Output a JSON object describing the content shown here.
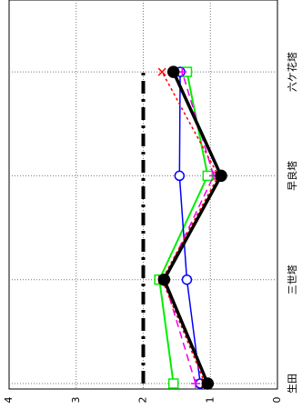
{
  "chart_data": {
    "type": "line",
    "categories": [
      "生田",
      "三世塔",
      "早良塔",
      "六ケ花塔"
    ],
    "ylim": [
      0,
      4
    ],
    "yticks": [
      0,
      1,
      2,
      3,
      4
    ],
    "grid": true,
    "series": [
      {
        "color": "#000000",
        "dash": "14,6,3,6",
        "width": 4,
        "marker": "none",
        "values": [
          2,
          2,
          2,
          2
        ]
      },
      {
        "color": "#00ee00",
        "dash": "",
        "width": 2,
        "marker": "square",
        "values": [
          1.55,
          1.76,
          1.04,
          1.35
        ]
      },
      {
        "color": "#0000ff",
        "dash": "",
        "width": 1.5,
        "marker": "circle-open",
        "values": [
          1.15,
          1.35,
          1.46,
          1.45
        ]
      },
      {
        "color": "#ee00ee",
        "dash": "8,5",
        "width": 1.5,
        "marker": "plus",
        "values": [
          1.22,
          1.69,
          0.95,
          1.42
        ]
      },
      {
        "color": "#ff0000",
        "dash": "3,3",
        "width": 1.5,
        "marker": "cross",
        "values": [
          1.08,
          1.72,
          0.88,
          1.72
        ]
      },
      {
        "color": "#000000",
        "dash": "",
        "width": 3.5,
        "marker": "circle-filled",
        "values": [
          1.04,
          1.69,
          0.84,
          1.55
        ]
      }
    ]
  }
}
